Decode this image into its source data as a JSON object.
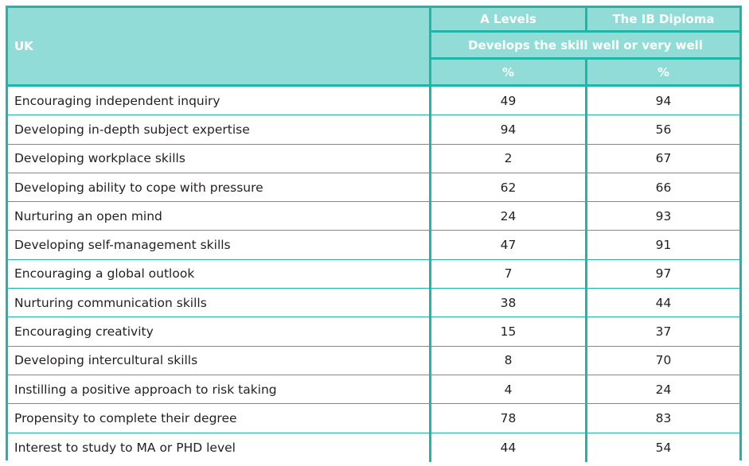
{
  "chart_data": {
    "type": "table",
    "header": {
      "corner": "UK",
      "columns": [
        "A Levels",
        "The IB Diploma"
      ],
      "span_label": "Develops the skill well or very well",
      "units": [
        "%",
        "%"
      ]
    },
    "rows": [
      {
        "label": "Encouraging independent inquiry",
        "values": [
          "49",
          "94"
        ]
      },
      {
        "label": "Developing in-depth subject expertise",
        "values": [
          "94",
          "56"
        ]
      },
      {
        "label": "Developing workplace skills",
        "values": [
          "2",
          "67"
        ]
      },
      {
        "label": "Developing ability to cope with pressure",
        "values": [
          "62",
          "66"
        ]
      },
      {
        "label": "Nurturing an open mind",
        "values": [
          "24",
          "93"
        ]
      },
      {
        "label": "Developing self-management skills",
        "values": [
          "47",
          "91"
        ]
      },
      {
        "label": "Encouraging a global outlook",
        "values": [
          "7",
          "97"
        ]
      },
      {
        "label": "Nurturing communication skills",
        "values": [
          "38",
          "44"
        ]
      },
      {
        "label": "Encouraging creativity",
        "values": [
          "15",
          "37"
        ]
      },
      {
        "label": "Developing intercultural skills",
        "values": [
          "8",
          "70"
        ]
      },
      {
        "label": "Instilling a positive approach to risk taking",
        "values": [
          "4",
          "24"
        ]
      },
      {
        "label": "Propensity to complete their degree",
        "values": [
          "78",
          "83"
        ]
      },
      {
        "label": "Interest to study to MA or PHD level",
        "values": [
          "44",
          "54"
        ]
      }
    ],
    "colors": {
      "border": "#1db6a7",
      "header_bg": "#91dcd7",
      "header_text": "#ffffff",
      "body_text": "#231f20"
    }
  }
}
